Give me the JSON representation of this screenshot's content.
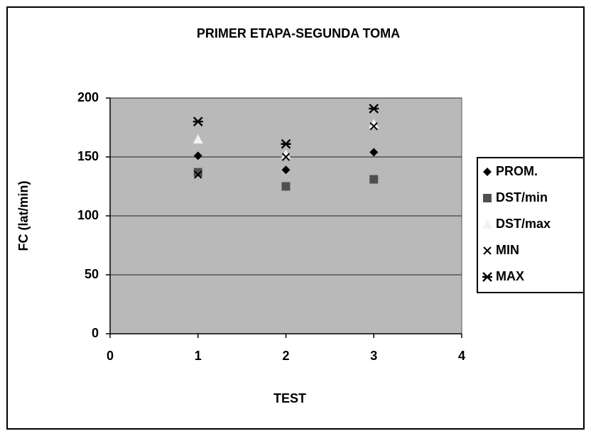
{
  "chart_data": {
    "type": "scatter",
    "title": "PRIMER ETAPA-SEGUNDA TOMA",
    "xlabel": "TEST",
    "ylabel": "FC (lat/min)",
    "x": [
      1,
      2,
      3
    ],
    "series": [
      {
        "name": "PROM.",
        "color": "#000000",
        "marker": "diamond",
        "values": [
          151,
          139,
          154
        ]
      },
      {
        "name": "DST/min",
        "color": "#505050",
        "marker": "square",
        "values": [
          137,
          125,
          131
        ]
      },
      {
        "name": "DST/max",
        "color": "#f2f2f2",
        "marker": "triangle",
        "values": [
          165,
          152,
          178
        ]
      },
      {
        "name": "MIN",
        "color": "#000000",
        "marker": "x",
        "values": [
          135,
          150,
          176
        ]
      },
      {
        "name": "MAX",
        "color": "#000000",
        "marker": "asterisk",
        "values": [
          180,
          161,
          191
        ]
      }
    ],
    "xlim": [
      0,
      4
    ],
    "xticks": [
      0,
      1,
      2,
      3,
      4
    ],
    "ylim": [
      0,
      200
    ],
    "yticks": [
      0,
      50,
      100,
      150,
      200
    ],
    "grid": true,
    "legend": "right"
  }
}
